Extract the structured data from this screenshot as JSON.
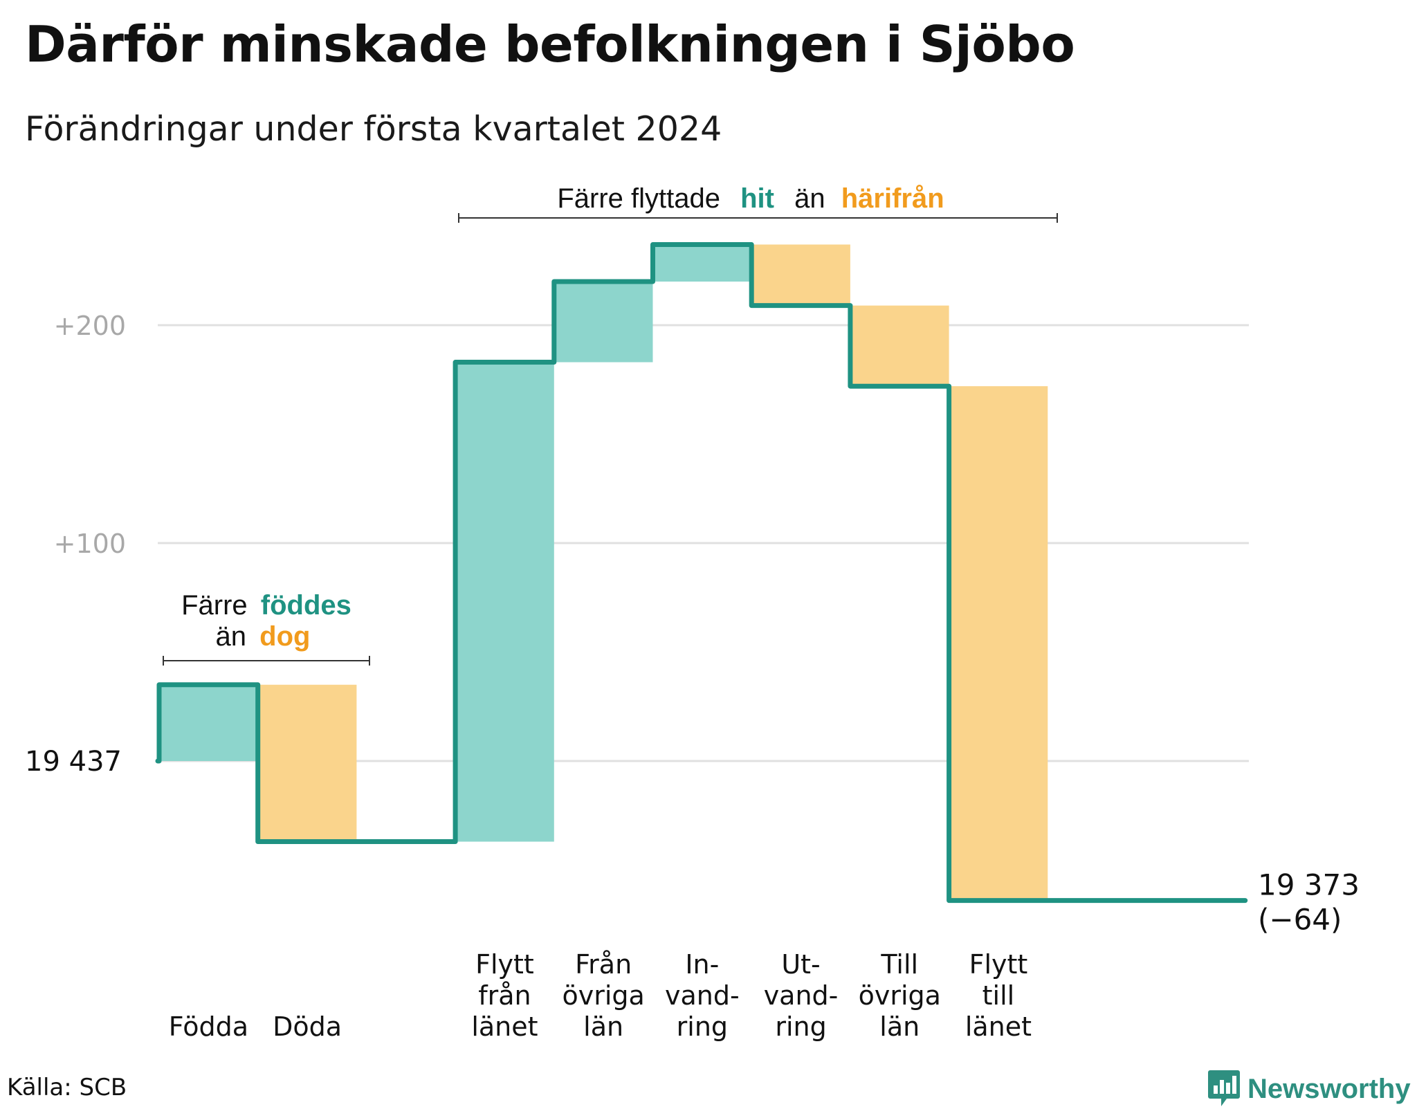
{
  "header": {
    "title": "Därför minskade befolkningen i Sjöbo",
    "subtitle": "Förändringar under första kvartalet 2024"
  },
  "annotations": {
    "births": {
      "prefix": "Färre",
      "hit": "föddes",
      "line2_prefix": "än",
      "away": "dog"
    },
    "migration": {
      "prefix": "Färre flyttade",
      "hit": "hit",
      "mid": "än",
      "away": "härifrån"
    }
  },
  "footer": {
    "source": "Källa: SCB",
    "brand": "Newsworthy"
  },
  "colors": {
    "increase_fill": "#8dd5cc",
    "decrease_fill": "#fad48c",
    "line": "#1f9282",
    "hit_text": "#1f9282",
    "away_text": "#f19b1d",
    "grid": "#e0e0e0",
    "tick_text": "#a8a8a8"
  },
  "chart_data": {
    "type": "waterfall",
    "start_value": 19437,
    "start_label": "19 437",
    "end_value": 19373,
    "end_label": "19 373",
    "end_change_label": "(−64)",
    "yticks": [
      {
        "value": 100,
        "label": "+100"
      },
      {
        "value": 200,
        "label": "+200"
      }
    ],
    "ylim": [
      -75,
      245
    ],
    "steps": [
      {
        "label": [
          "Födda"
        ],
        "change": 35
      },
      {
        "label": [
          "Döda"
        ],
        "change": -72
      },
      {
        "label": [],
        "change": 0
      },
      {
        "label": [
          "Flytt",
          "från",
          "länet"
        ],
        "change": 220
      },
      {
        "label": [
          "Från",
          "övriga",
          "län"
        ],
        "change": 37
      },
      {
        "label": [
          "In-",
          "vand-",
          "ring"
        ],
        "change": 17
      },
      {
        "label": [
          "Ut-",
          "vand-",
          "ring"
        ],
        "change": -28
      },
      {
        "label": [
          "Till",
          "övriga",
          "län"
        ],
        "change": -37
      },
      {
        "label": [
          "Flytt",
          "till",
          "länet"
        ],
        "change": -236
      },
      {
        "label": [],
        "change": 0
      },
      {
        "label": [],
        "change": 0
      }
    ]
  }
}
